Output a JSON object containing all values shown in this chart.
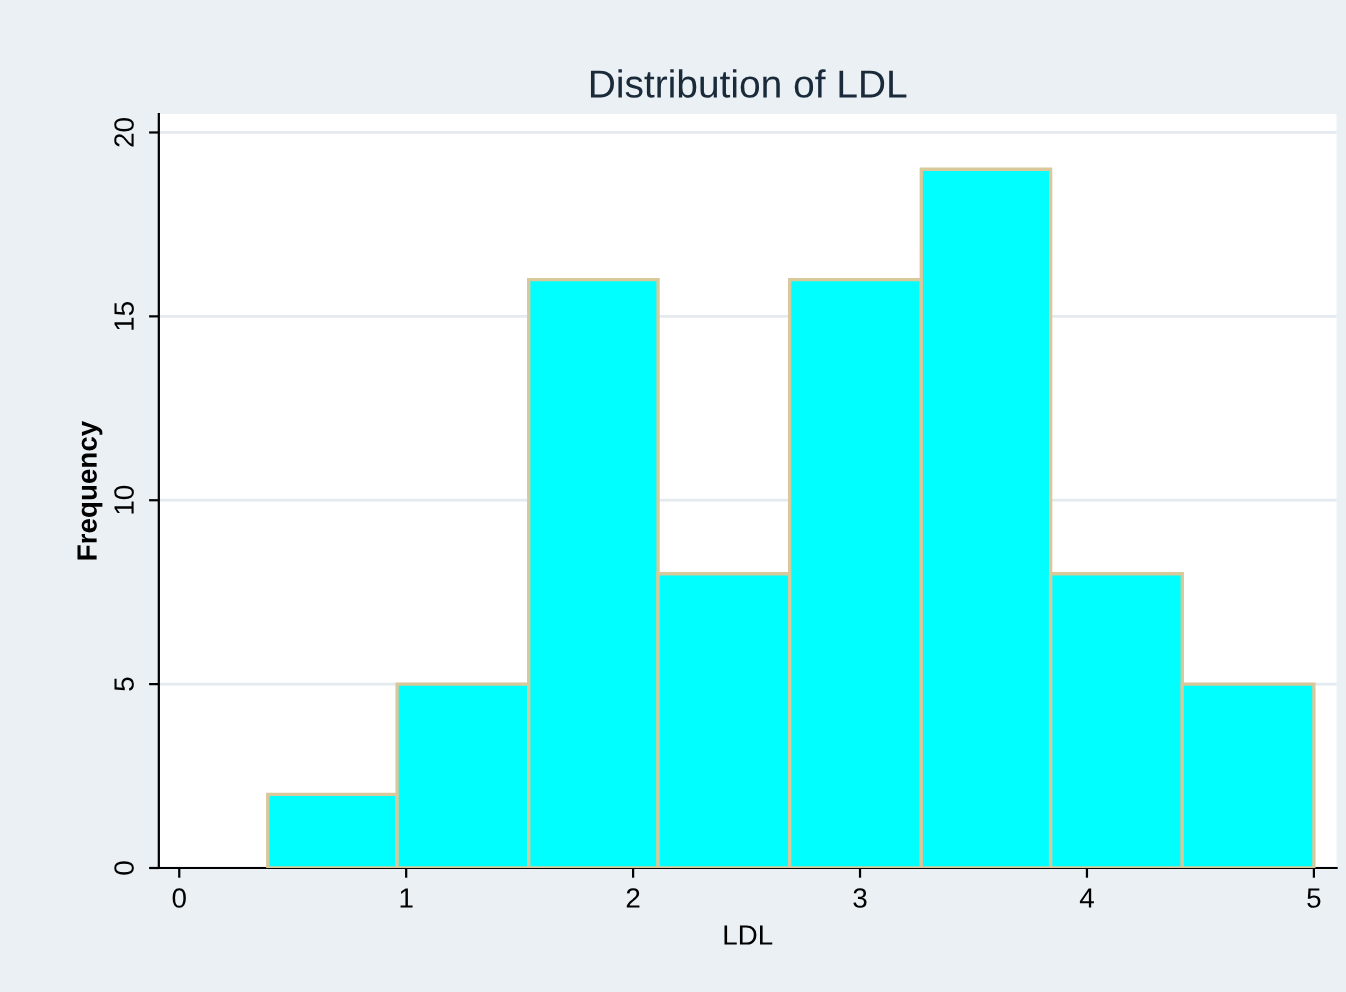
{
  "chart_data": {
    "type": "histogram",
    "title": "Distribution of LDL",
    "xlabel": "LDL",
    "ylabel": "Frequency",
    "bins": [
      0.39,
      0.96,
      1.54,
      2.11,
      2.69,
      3.27,
      3.84,
      4.42,
      5.0
    ],
    "values": [
      2,
      5,
      16,
      8,
      16,
      19,
      8,
      5
    ],
    "color": "#00ffff",
    "xlim": [
      -0.09,
      5.1
    ],
    "ylim": [
      0,
      20.5
    ],
    "xticks": [
      0,
      1,
      2,
      3,
      4,
      5
    ],
    "yticks": [
      0,
      5,
      10,
      15,
      20
    ],
    "grid": "y"
  }
}
